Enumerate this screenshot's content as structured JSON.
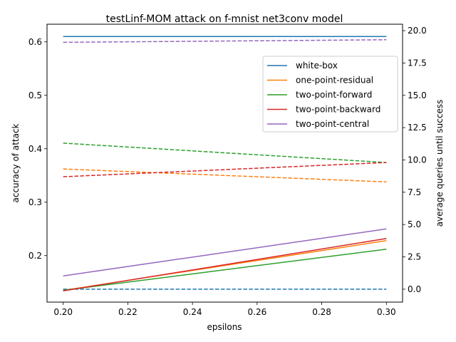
{
  "chart_data": {
    "type": "line",
    "title": "testLinf-MOM attack on f-mnist net3conv model",
    "xlabel": "epsilons",
    "ylabel_left": "accuracy of attack",
    "ylabel_right": "average queries until success",
    "x": [
      0.2,
      0.3
    ],
    "xlim": [
      0.195,
      0.305
    ],
    "ylim_left": [
      0.113,
      0.633
    ],
    "ylim_right": [
      -1.0,
      20.5
    ],
    "xticks": [
      "0.20",
      "0.22",
      "0.24",
      "0.26",
      "0.28",
      "0.30"
    ],
    "yticks_left": [
      "0.2",
      "0.3",
      "0.4",
      "0.5",
      "0.6"
    ],
    "yticks_right": [
      "0.0",
      "2.5",
      "5.0",
      "7.5",
      "10.0",
      "12.5",
      "15.0",
      "17.5",
      "20.0"
    ],
    "legend_position": "upper right",
    "series": [
      {
        "name": "white-box",
        "color": "#1f77b4",
        "accuracy": [
          0.61,
          0.61
        ],
        "queries": [
          0.0,
          0.0
        ]
      },
      {
        "name": "one-point-residual",
        "color": "#ff7f0e",
        "accuracy": [
          0.135,
          0.228
        ],
        "queries": [
          9.3,
          8.3
        ]
      },
      {
        "name": "two-point-forward",
        "color": "#2ca02c",
        "accuracy": [
          0.135,
          0.212
        ],
        "queries": [
          11.3,
          9.8
        ]
      },
      {
        "name": "two-point-backward",
        "color": "#d62728",
        "accuracy": [
          0.134,
          0.232
        ],
        "queries": [
          8.7,
          9.8
        ]
      },
      {
        "name": "two-point-central",
        "color": "#9467bd",
        "accuracy": [
          0.162,
          0.25
        ],
        "queries": [
          19.1,
          19.3
        ]
      }
    ]
  }
}
